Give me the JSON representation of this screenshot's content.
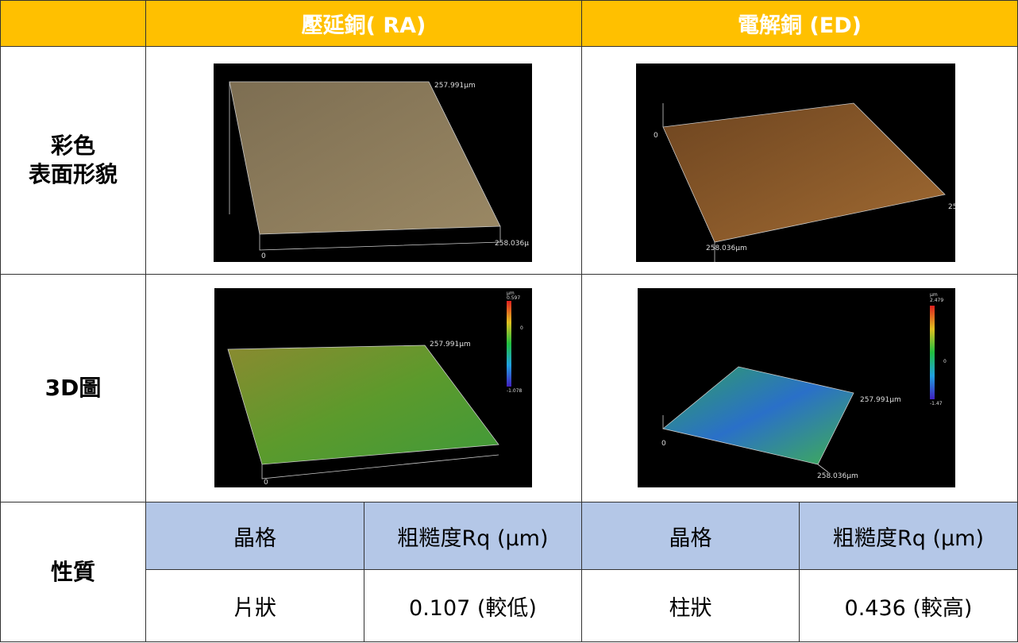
{
  "header": {
    "col_ra": "壓延銅( RA)",
    "col_ed": "電解銅 (ED)"
  },
  "rows": [
    {
      "label_lines": [
        "彩色",
        "表面形貌"
      ],
      "ra_image": {
        "labels": [
          "257.991μm",
          "258.036μ",
          "0"
        ]
      },
      "ed_image": {
        "labels": [
          "0",
          "25",
          "258.036μm"
        ]
      }
    },
    {
      "label_lines": [
        "3D圖"
      ],
      "ra_image": {
        "labels": [
          "257.991μm",
          "0"
        ],
        "scale": [
          "μm",
          "0.597",
          "0",
          "-1.078"
        ]
      },
      "ed_image": {
        "labels": [
          "257.991μm",
          "0",
          "258.036μm"
        ],
        "scale": [
          "μm",
          "2.479",
          "0",
          "-1.47"
        ]
      }
    }
  ],
  "properties": {
    "label": "性質",
    "headers": [
      "晶格",
      "粗糙度Rq (μm)",
      "晶格",
      "粗糙度Rq (μm)"
    ],
    "values": [
      "片狀",
      "0.107 (較低)",
      "柱狀",
      "0.436 (較高)"
    ]
  }
}
